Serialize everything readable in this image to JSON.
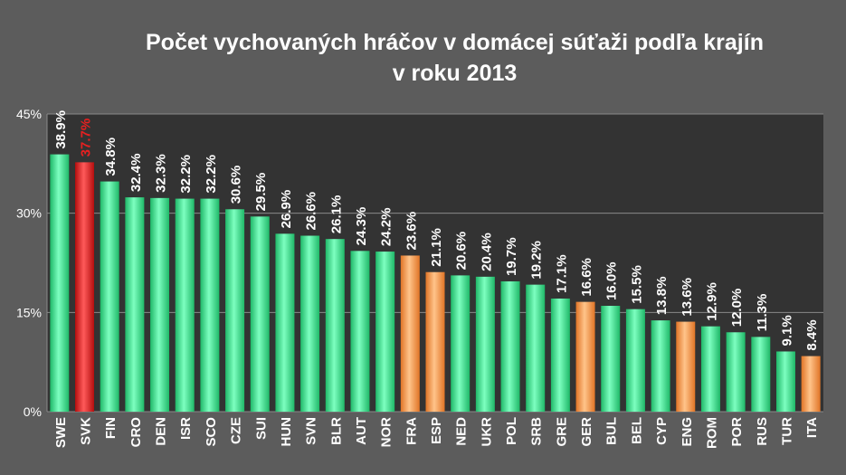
{
  "chart_data": {
    "type": "bar",
    "title_line1": "Počet vychovaných hráčov v domácej súťaži podľa krajín",
    "title_line2": "v roku 2013",
    "xlabel": "",
    "ylabel": "",
    "ylim": [
      0,
      45
    ],
    "yticks": [
      "0%",
      "15%",
      "30%",
      "45%"
    ],
    "ytick_values": [
      0,
      15,
      30,
      45
    ],
    "grid": true,
    "legend": "none",
    "categories": [
      "SWE",
      "SVK",
      "FIN",
      "CRO",
      "DEN",
      "ISR",
      "SCO",
      "CZE",
      "SUI",
      "HUN",
      "SVN",
      "BLR",
      "AUT",
      "NOR",
      "FRA",
      "ESP",
      "NED",
      "UKR",
      "POL",
      "SRB",
      "GRE",
      "GER",
      "BUL",
      "BEL",
      "CYP",
      "ENG",
      "ROM",
      "POR",
      "RUS",
      "TUR",
      "ITA"
    ],
    "values": [
      38.9,
      37.7,
      34.8,
      32.4,
      32.3,
      32.2,
      32.2,
      30.6,
      29.5,
      26.9,
      26.6,
      26.1,
      24.3,
      24.2,
      23.6,
      21.1,
      20.6,
      20.4,
      19.7,
      19.2,
      17.1,
      16.6,
      16.0,
      15.5,
      13.8,
      13.6,
      12.9,
      12.0,
      11.3,
      9.1,
      8.4
    ],
    "labels": [
      "38.9%",
      "37.7%",
      "34.8%",
      "32.4%",
      "32.3%",
      "32.2%",
      "32.2%",
      "30.6%",
      "29.5%",
      "26.9%",
      "26.6%",
      "26.1%",
      "24.3%",
      "24.2%",
      "23.6%",
      "21.1%",
      "20.6%",
      "20.4%",
      "19.7%",
      "19.2%",
      "17.1%",
      "16.6%",
      "16.0%",
      "15.5%",
      "13.8%",
      "13.6%",
      "12.9%",
      "12.0%",
      "11.3%",
      "9.1%",
      "8.4%"
    ],
    "bar_colors": [
      "green",
      "red",
      "green",
      "green",
      "green",
      "green",
      "green",
      "green",
      "green",
      "green",
      "green",
      "green",
      "green",
      "green",
      "orange",
      "orange",
      "green",
      "green",
      "green",
      "green",
      "green",
      "orange",
      "green",
      "green",
      "green",
      "orange",
      "green",
      "green",
      "green",
      "green",
      "orange"
    ],
    "colors": {
      "green": "#33e08a",
      "red": "#e82020",
      "orange": "#ff9a4a",
      "highlight_label": "#e82020",
      "plot_background": "#333333",
      "page_background": "#5c5c5c",
      "text": "#ffffff"
    },
    "highlight_category": "SVK"
  }
}
